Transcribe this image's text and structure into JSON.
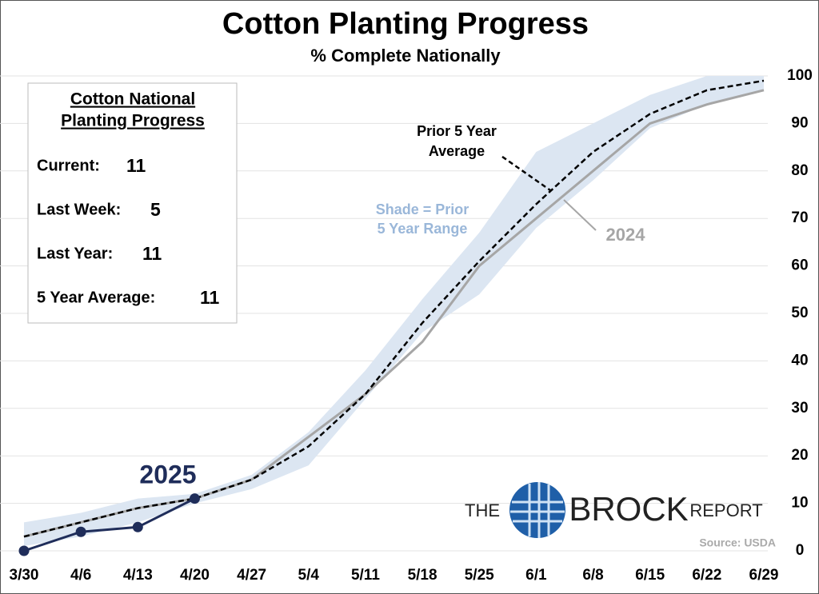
{
  "chart_data": {
    "type": "line",
    "title": "Cotton Planting Progress",
    "subtitle": "% Complete Nationally",
    "categories": [
      "3/30",
      "4/6",
      "4/13",
      "4/20",
      "4/27",
      "5/4",
      "5/11",
      "5/18",
      "5/25",
      "6/1",
      "6/8",
      "6/15",
      "6/22",
      "6/29"
    ],
    "ylim": [
      0,
      100
    ],
    "yticks": [
      0,
      10,
      20,
      30,
      40,
      50,
      60,
      70,
      80,
      90,
      100
    ],
    "grid": true,
    "range": {
      "color": "#dce6f2",
      "low": [
        1,
        3,
        6,
        10,
        13,
        18,
        32,
        46,
        54,
        68,
        78,
        89,
        94,
        97
      ],
      "high": [
        6,
        8,
        11,
        12,
        16,
        25,
        38,
        53,
        67,
        84,
        90,
        96,
        100,
        100
      ]
    },
    "average": {
      "color": "#000000",
      "values": [
        3,
        6,
        9,
        11,
        15,
        22,
        33,
        48,
        61,
        73,
        84,
        92,
        97,
        99
      ]
    },
    "series": [
      {
        "name": "2024",
        "color": "#a6a6a6",
        "values": [
          3,
          6,
          9,
          11,
          15,
          24,
          33,
          44,
          60,
          70,
          80,
          90,
          94,
          97
        ]
      },
      {
        "name": "2025",
        "color": "#1f2d5a",
        "values": [
          0,
          4,
          5,
          11,
          null,
          null,
          null,
          null,
          null,
          null,
          null,
          null,
          null,
          null
        ]
      }
    ],
    "annotations": {
      "average_label": [
        "Prior 5 Year",
        "Average"
      ],
      "range_label": [
        "Shade = Prior",
        "5 Year Range"
      ],
      "source": "Source: USDA",
      "logo": [
        "THE",
        "BROCK",
        "REPORT"
      ]
    },
    "info_box": {
      "title": [
        "Cotton National",
        "Planting Progress"
      ],
      "rows": [
        {
          "label": "Current:",
          "value": 11
        },
        {
          "label": "Last Week:",
          "value": 5
        },
        {
          "label": "Last Year:",
          "value": 11
        },
        {
          "label": "5 Year Average:",
          "value": 11
        }
      ]
    }
  }
}
